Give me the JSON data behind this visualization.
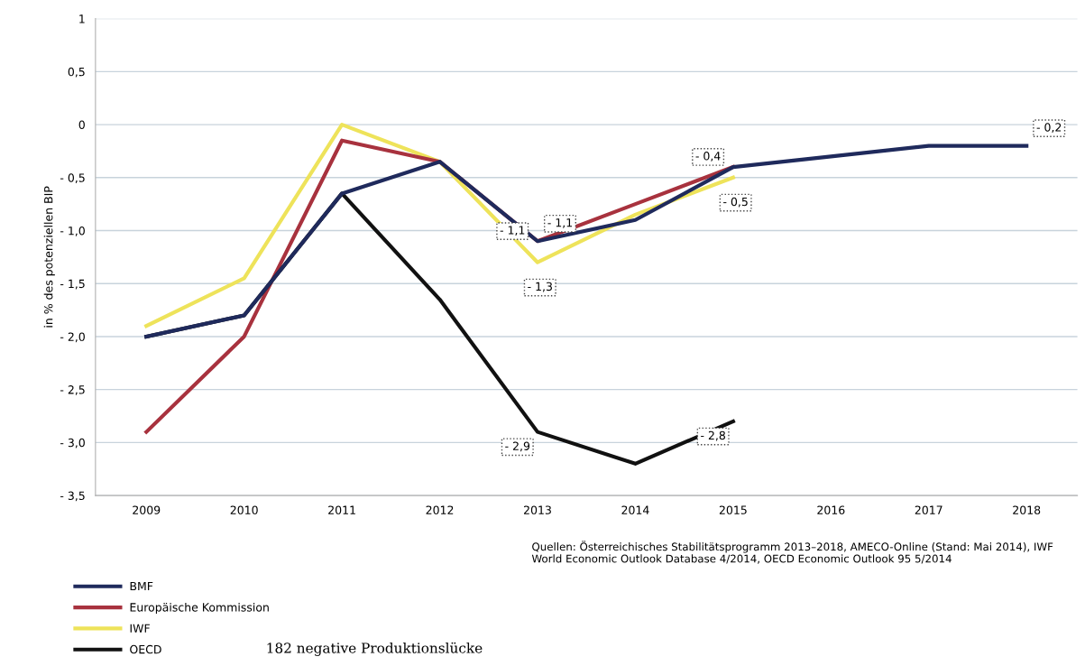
{
  "chart_data": {
    "type": "line",
    "ylabel": "in % des potenziellen BIP",
    "categories": [
      "2009",
      "2010",
      "2011",
      "2012",
      "2013",
      "2014",
      "2015",
      "2016",
      "2017",
      "2018"
    ],
    "series": [
      {
        "name": "BMF",
        "color": "#1f2a5c",
        "values": [
          -2.0,
          -1.8,
          -0.65,
          -0.35,
          -1.1,
          -0.9,
          -0.4,
          -0.3,
          -0.2,
          -0.2
        ],
        "value_labels": [
          null,
          null,
          null,
          null,
          "- 1,1",
          null,
          null,
          null,
          null,
          "- 0,2"
        ]
      },
      {
        "name": "Europäische Kommission",
        "color": "#a8323e",
        "values": [
          -2.9,
          -2.0,
          -0.15,
          -0.35,
          -1.1,
          -0.75,
          -0.4,
          null,
          null,
          null
        ],
        "value_labels": [
          null,
          null,
          null,
          null,
          "- 1,1",
          null,
          "- 0,4",
          null,
          null,
          null
        ]
      },
      {
        "name": "IWF",
        "color": "#eee35a",
        "values": [
          -1.9,
          -1.45,
          0.0,
          -0.35,
          -1.3,
          -0.85,
          -0.5,
          null,
          null,
          null
        ],
        "value_labels": [
          null,
          null,
          null,
          null,
          "- 1,3",
          null,
          "- 0,5",
          null,
          null,
          null
        ]
      },
      {
        "name": "OECD",
        "color": "#111111",
        "values": [
          -2.0,
          -1.8,
          -0.65,
          -1.65,
          -2.9,
          -3.2,
          -2.8,
          null,
          null,
          null
        ],
        "value_labels": [
          null,
          null,
          null,
          null,
          "- 2,9",
          null,
          "- 2,8",
          null,
          null,
          null
        ]
      }
    ],
    "ylim": [
      -3.5,
      1
    ],
    "yticks": [
      1,
      {
        "value": 0.5,
        "label": "0,5"
      },
      0,
      {
        "value": -0.5,
        "label": "- 0,5"
      },
      {
        "value": -1.0,
        "label": "- 1,0"
      },
      {
        "value": -1.5,
        "label": "- 1,5"
      },
      {
        "value": -2.0,
        "label": "- 2,0"
      },
      {
        "value": -2.5,
        "label": "- 2,5"
      },
      {
        "value": -3.0,
        "label": "- 3,0"
      },
      {
        "value": -3.5,
        "label": "- 3,5"
      }
    ],
    "grid": "y",
    "legend": "bottom left",
    "marker": "none",
    "line_style": "solid",
    "annotations": [
      "Quellen: Österreichisches Stabilitätsprogramm 2013–2018, AMECO-Online (Stand: Mai 2014), IWF World Economic Outlook Database 4/2014, OECD Economic Outlook 95 5/2014",
      "182 negative Produktionslücke"
    ]
  }
}
